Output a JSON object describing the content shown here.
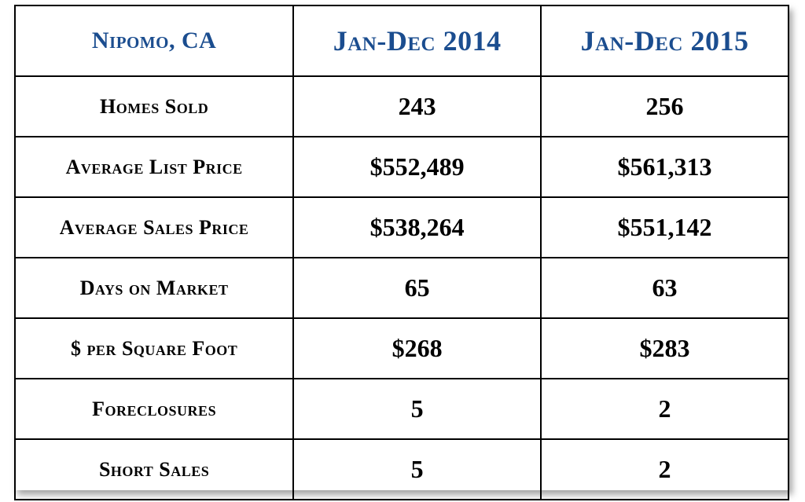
{
  "table": {
    "type": "table",
    "background_color": "#ffffff",
    "border_color": "#000000",
    "border_width": 2,
    "shadow": "4px 6px 8px rgba(0,0,0,0.35)",
    "header_color": "#1b4d8f",
    "body_text_color": "#000000",
    "header_font_variant": "small-caps",
    "location_label": "Nipomo, CA",
    "periods": [
      "Jan-Dec  2014",
      "Jan-Dec  2015"
    ],
    "header_fontsize_location": 30,
    "header_fontsize_period": 36,
    "label_fontsize": 26,
    "value_fontsize": 32,
    "column_widths_pct": [
      36,
      32,
      32
    ],
    "rows": [
      {
        "label": "Homes Sold",
        "values": [
          "243",
          "256"
        ]
      },
      {
        "label": "Average List Price",
        "values": [
          "$552,489",
          "$561,313"
        ]
      },
      {
        "label": "Average Sales Price",
        "values": [
          "$538,264",
          "$551,142"
        ]
      },
      {
        "label": "Days on Market",
        "values": [
          "65",
          "63"
        ]
      },
      {
        "label": "$ per Square Foot",
        "values": [
          "$268",
          "$283"
        ]
      },
      {
        "label": "Foreclosures",
        "values": [
          "5",
          "2"
        ]
      },
      {
        "label": "Short Sales",
        "values": [
          "5",
          "2"
        ]
      }
    ]
  }
}
